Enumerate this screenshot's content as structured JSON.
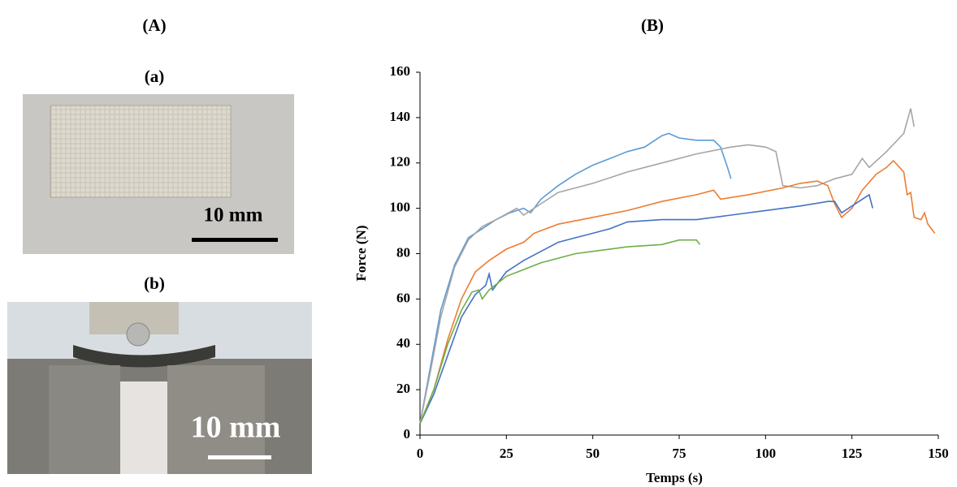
{
  "panels": {
    "A": "(A)",
    "B": "(B)",
    "a": "(a)",
    "b": "(b)"
  },
  "scale_bars": [
    "10 mm",
    "10 mm"
  ],
  "chart_data": {
    "type": "line",
    "xlabel": "Temps (s)",
    "ylabel": "Force (N)",
    "xlim": [
      0,
      150
    ],
    "xticks": [
      0,
      25,
      50,
      75,
      100,
      125,
      150
    ],
    "ylim": [
      0,
      160
    ],
    "yticks": [
      0,
      20,
      40,
      60,
      80,
      100,
      120,
      140,
      160
    ],
    "series": [
      {
        "color": "#5b9bd5",
        "x": [
          0,
          3,
          6,
          10,
          14,
          18,
          22,
          26,
          30,
          32,
          35,
          40,
          45,
          50,
          55,
          60,
          65,
          70,
          72,
          75,
          80,
          85,
          87,
          89,
          90
        ],
        "values": [
          5,
          30,
          55,
          75,
          87,
          91,
          95,
          98,
          100,
          98,
          104,
          110,
          115,
          119,
          122,
          125,
          127,
          132,
          133,
          131,
          130,
          130,
          127,
          118,
          113
        ]
      },
      {
        "color": "#a5a5a5",
        "x": [
          0,
          3,
          6,
          10,
          14,
          18,
          22,
          28,
          30,
          35,
          40,
          50,
          60,
          70,
          80,
          90,
          95,
          100,
          103,
          105,
          110,
          115,
          120,
          125,
          128,
          130,
          135,
          140,
          142,
          143
        ],
        "values": [
          5,
          28,
          52,
          74,
          86,
          92,
          95,
          100,
          97,
          102,
          107,
          111,
          116,
          120,
          124,
          127,
          128,
          127,
          125,
          110,
          109,
          110,
          113,
          115,
          122,
          118,
          125,
          133,
          144,
          136
        ]
      },
      {
        "color": "#ed7d31",
        "x": [
          0,
          4,
          8,
          12,
          16,
          20,
          25,
          30,
          33,
          40,
          50,
          60,
          70,
          80,
          85,
          87,
          95,
          105,
          110,
          115,
          118,
          120,
          122,
          125,
          128,
          132,
          135,
          137,
          140,
          141,
          142,
          143,
          145,
          146,
          147,
          149
        ],
        "values": [
          5,
          20,
          42,
          60,
          72,
          77,
          82,
          85,
          89,
          93,
          96,
          99,
          103,
          106,
          108,
          104,
          106,
          109,
          111,
          112,
          110,
          102,
          96,
          100,
          108,
          115,
          118,
          121,
          116,
          106,
          107,
          96,
          95,
          98,
          93,
          89
        ]
      },
      {
        "color": "#4472c4",
        "x": [
          0,
          4,
          8,
          12,
          16,
          19,
          20,
          21,
          25,
          30,
          35,
          40,
          45,
          50,
          55,
          60,
          70,
          80,
          90,
          100,
          110,
          118,
          120,
          122,
          125,
          130,
          131
        ],
        "values": [
          5,
          18,
          35,
          52,
          62,
          66,
          71,
          64,
          72,
          77,
          81,
          85,
          87,
          89,
          91,
          94,
          95,
          95,
          97,
          99,
          101,
          103,
          103,
          98,
          101,
          106,
          100
        ]
      },
      {
        "color": "#70ad47",
        "x": [
          0,
          4,
          8,
          12,
          15,
          17,
          18,
          20,
          25,
          30,
          35,
          40,
          45,
          50,
          55,
          60,
          70,
          75,
          80,
          81
        ],
        "values": [
          5,
          20,
          40,
          55,
          63,
          64,
          60,
          64,
          70,
          73,
          76,
          78,
          80,
          81,
          82,
          83,
          84,
          86,
          86,
          84
        ]
      }
    ]
  }
}
